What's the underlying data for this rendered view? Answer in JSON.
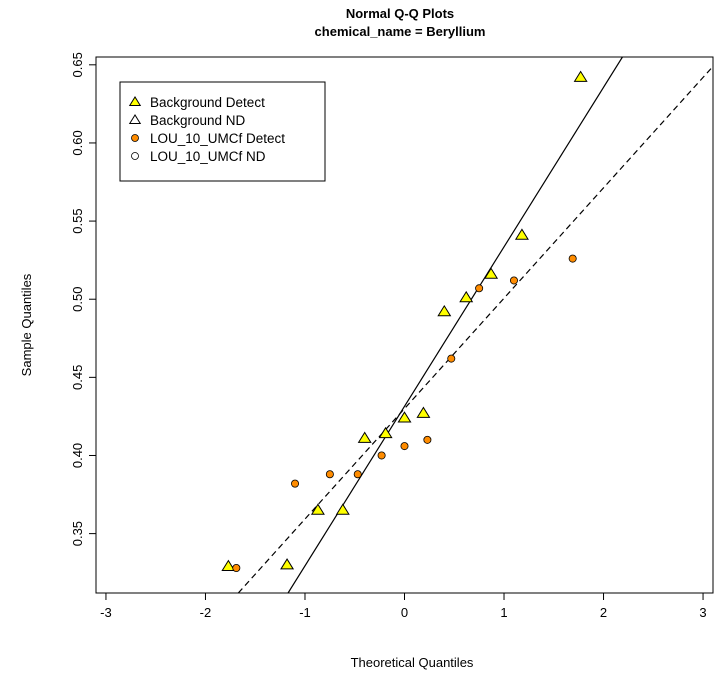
{
  "chart_data": {
    "type": "scatter",
    "title": "Normal Q-Q Plots",
    "subtitle": "chemical_name = Beryllium",
    "xlabel": "Theoretical Quantiles",
    "ylabel": "Sample Quantiles",
    "xlim": [
      -3.1,
      3.1
    ],
    "ylim": [
      0.312,
      0.655
    ],
    "x_ticks": [
      -3,
      -2,
      -1,
      0,
      1,
      2,
      3
    ],
    "x_tick_labels": [
      "-3",
      "-2",
      "-1",
      "0",
      "1",
      "2",
      "3"
    ],
    "y_ticks": [
      0.35,
      0.4,
      0.45,
      0.5,
      0.55,
      0.6,
      0.65
    ],
    "y_tick_labels": [
      "0.35",
      "0.40",
      "0.45",
      "0.50",
      "0.55",
      "0.60",
      "0.65"
    ],
    "grid": false,
    "legend_position": "top-left",
    "legend": [
      {
        "label": "Background Detect",
        "marker": "triangle",
        "fill": "#ffff00"
      },
      {
        "label": "Background ND",
        "marker": "triangle",
        "fill": "#ffffff"
      },
      {
        "label": "LOU_10_UMCf Detect",
        "marker": "circle",
        "fill": "#ff8c00"
      },
      {
        "label": "LOU_10_UMCf ND",
        "marker": "circle",
        "fill": "#ffffff"
      }
    ],
    "series": [
      {
        "name": "Background Detect",
        "marker": "triangle",
        "color": "#ffff00",
        "points": [
          [
            -1.77,
            0.329
          ],
          [
            -1.18,
            0.33
          ],
          [
            -0.87,
            0.365
          ],
          [
            -0.62,
            0.365
          ],
          [
            -0.4,
            0.411
          ],
          [
            -0.19,
            0.414
          ],
          [
            0.0,
            0.424
          ],
          [
            0.19,
            0.427
          ],
          [
            0.4,
            0.492
          ],
          [
            0.62,
            0.501
          ],
          [
            0.87,
            0.516
          ],
          [
            1.18,
            0.541
          ],
          [
            1.77,
            0.642
          ]
        ]
      },
      {
        "name": "Background ND",
        "marker": "triangle",
        "color": "#ffffff",
        "points": []
      },
      {
        "name": "LOU_10_UMCf Detect",
        "marker": "circle",
        "color": "#ff8c00",
        "points": [
          [
            -1.69,
            0.328
          ],
          [
            -1.1,
            0.382
          ],
          [
            -0.75,
            0.388
          ],
          [
            -0.47,
            0.388
          ],
          [
            -0.23,
            0.4
          ],
          [
            0.0,
            0.406
          ],
          [
            0.23,
            0.41
          ],
          [
            0.47,
            0.462
          ],
          [
            0.75,
            0.507
          ],
          [
            1.1,
            0.512
          ],
          [
            1.69,
            0.526
          ]
        ]
      },
      {
        "name": "LOU_10_UMCf ND",
        "marker": "circle",
        "color": "#ffffff",
        "points": []
      }
    ],
    "reference_lines": [
      {
        "series": "Background Detect",
        "style": "solid",
        "x": [
          -1.17,
          2.19
        ],
        "y": [
          0.312,
          0.655
        ]
      },
      {
        "series": "LOU_10_UMCf Detect",
        "style": "dashed",
        "x": [
          -1.67,
          3.1
        ],
        "y": [
          0.312,
          0.649
        ]
      }
    ]
  }
}
